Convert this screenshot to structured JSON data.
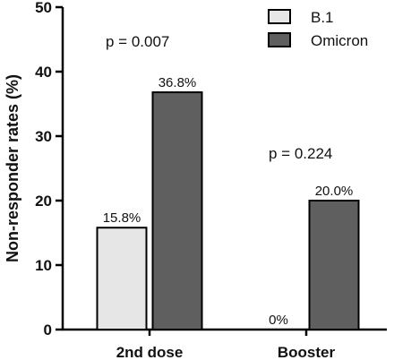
{
  "chart_data": {
    "type": "bar",
    "ylabel": "Non-responder rates (%)",
    "ylim": [
      0,
      50
    ],
    "yticks": [
      0,
      10,
      20,
      30,
      40,
      50
    ],
    "categories": [
      "2nd dose",
      "Booster"
    ],
    "series": [
      {
        "name": "B.1",
        "values": [
          15.8,
          0
        ],
        "labels": [
          "15.8%",
          "0%"
        ],
        "color": "#e6e6e6"
      },
      {
        "name": "Omicron",
        "values": [
          36.8,
          20.0
        ],
        "labels": [
          "36.8%",
          "20.0%"
        ],
        "color": "#5f5f5f"
      }
    ],
    "annotations": [
      "p = 0.007",
      "p = 0.224"
    ],
    "legend_position": "top-right",
    "grid": false
  }
}
